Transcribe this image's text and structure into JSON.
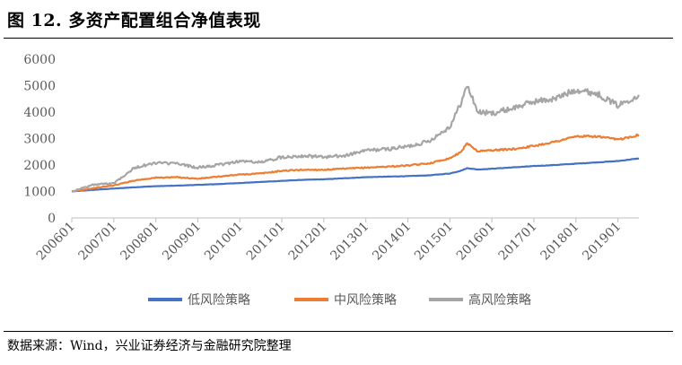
{
  "figure": {
    "title": "图 12. 多资产配置组合净值表现",
    "source": "数据来源：Wind，兴业证券经济与金融研究院整理"
  },
  "chart_data": {
    "type": "line",
    "title": "",
    "xlabel": "",
    "ylabel": "",
    "ylim": [
      0,
      6000
    ],
    "yticks": [
      0,
      1000,
      2000,
      3000,
      4000,
      5000,
      6000
    ],
    "xlim": [
      "2006-01",
      "2019-07"
    ],
    "xtick_labels": [
      "200601",
      "200701",
      "200801",
      "200901",
      "201001",
      "201101",
      "201201",
      "201301",
      "201401",
      "201501",
      "201601",
      "201701",
      "201801",
      "201901"
    ],
    "grid": "none",
    "legend_position": "bottom",
    "series": [
      {
        "name": "低风险策略",
        "color": "#4472C4",
        "points": [
          [
            "2006-01",
            1000
          ],
          [
            "2006-07",
            1060
          ],
          [
            "2007-01",
            1110
          ],
          [
            "2007-07",
            1160
          ],
          [
            "2008-01",
            1200
          ],
          [
            "2008-07",
            1220
          ],
          [
            "2009-01",
            1250
          ],
          [
            "2009-07",
            1280
          ],
          [
            "2010-01",
            1320
          ],
          [
            "2010-07",
            1360
          ],
          [
            "2011-01",
            1400
          ],
          [
            "2011-07",
            1440
          ],
          [
            "2012-01",
            1460
          ],
          [
            "2012-07",
            1500
          ],
          [
            "2013-01",
            1540
          ],
          [
            "2013-07",
            1560
          ],
          [
            "2014-01",
            1580
          ],
          [
            "2014-07",
            1610
          ],
          [
            "2015-01",
            1680
          ],
          [
            "2015-04",
            1780
          ],
          [
            "2015-06",
            1880
          ],
          [
            "2015-09",
            1830
          ],
          [
            "2016-01",
            1860
          ],
          [
            "2016-07",
            1910
          ],
          [
            "2017-01",
            1960
          ],
          [
            "2017-07",
            2000
          ],
          [
            "2018-01",
            2050
          ],
          [
            "2018-07",
            2100
          ],
          [
            "2019-01",
            2150
          ],
          [
            "2019-07",
            2250
          ]
        ]
      },
      {
        "name": "中风险策略",
        "color": "#ED7D31",
        "points": [
          [
            "2006-01",
            1000
          ],
          [
            "2006-07",
            1120
          ],
          [
            "2007-01",
            1230
          ],
          [
            "2007-07",
            1420
          ],
          [
            "2008-01",
            1520
          ],
          [
            "2008-07",
            1540
          ],
          [
            "2009-01",
            1480
          ],
          [
            "2009-07",
            1560
          ],
          [
            "2010-01",
            1640
          ],
          [
            "2010-07",
            1680
          ],
          [
            "2011-01",
            1780
          ],
          [
            "2011-07",
            1820
          ],
          [
            "2012-01",
            1820
          ],
          [
            "2012-07",
            1860
          ],
          [
            "2013-01",
            1900
          ],
          [
            "2013-07",
            1940
          ],
          [
            "2014-01",
            1980
          ],
          [
            "2014-07",
            2060
          ],
          [
            "2015-01",
            2260
          ],
          [
            "2015-04",
            2480
          ],
          [
            "2015-06",
            2820
          ],
          [
            "2015-09",
            2520
          ],
          [
            "2016-01",
            2560
          ],
          [
            "2016-07",
            2600
          ],
          [
            "2017-01",
            2720
          ],
          [
            "2017-07",
            2880
          ],
          [
            "2018-01",
            3080
          ],
          [
            "2018-07",
            3080
          ],
          [
            "2019-01",
            2960
          ],
          [
            "2019-07",
            3140
          ]
        ]
      },
      {
        "name": "高风险策略",
        "color": "#A5A5A5",
        "points": [
          [
            "2006-01",
            1000
          ],
          [
            "2006-07",
            1250
          ],
          [
            "2007-01",
            1320
          ],
          [
            "2007-07",
            1900
          ],
          [
            "2008-01",
            2080
          ],
          [
            "2008-07",
            2050
          ],
          [
            "2009-01",
            1900
          ],
          [
            "2009-07",
            2000
          ],
          [
            "2010-01",
            2150
          ],
          [
            "2010-07",
            2100
          ],
          [
            "2011-01",
            2300
          ],
          [
            "2011-07",
            2350
          ],
          [
            "2012-01",
            2300
          ],
          [
            "2012-07",
            2350
          ],
          [
            "2013-01",
            2550
          ],
          [
            "2013-07",
            2600
          ],
          [
            "2014-01",
            2700
          ],
          [
            "2014-07",
            2900
          ],
          [
            "2015-01",
            3450
          ],
          [
            "2015-04",
            4300
          ],
          [
            "2015-06",
            5000
          ],
          [
            "2015-09",
            4000
          ],
          [
            "2016-01",
            3950
          ],
          [
            "2016-07",
            4150
          ],
          [
            "2017-01",
            4400
          ],
          [
            "2017-07",
            4500
          ],
          [
            "2018-01",
            4850
          ],
          [
            "2018-07",
            4700
          ],
          [
            "2019-01",
            4250
          ],
          [
            "2019-07",
            4650
          ]
        ]
      }
    ]
  }
}
